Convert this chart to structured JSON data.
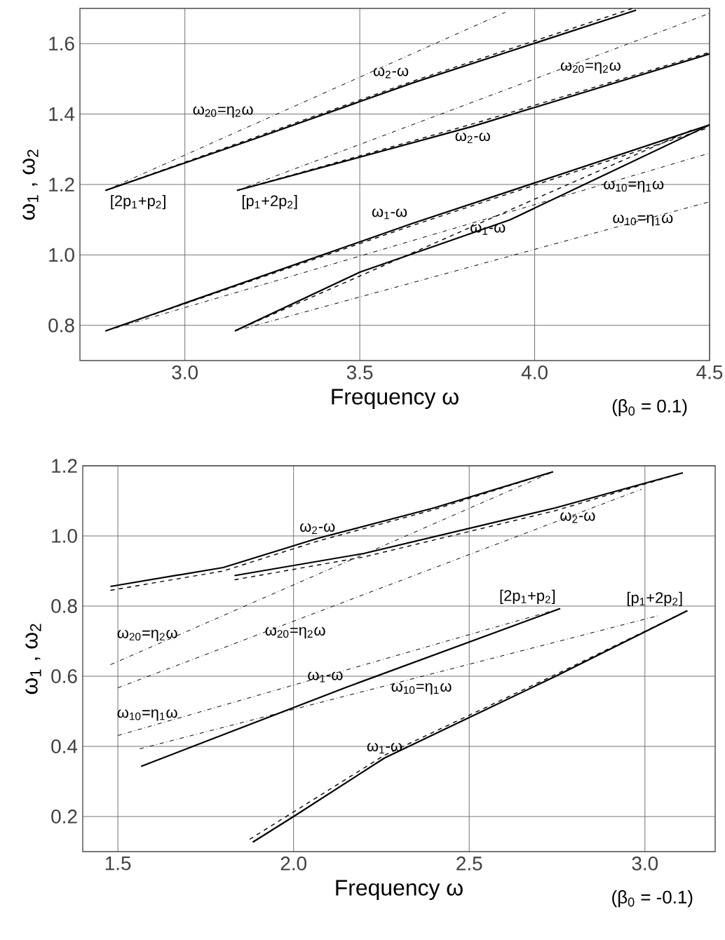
{
  "chart_data": [
    {
      "type": "line",
      "xlabel": "Frequency  ω",
      "ylabel": "ω$_{1}$ ,  ω$_{2}$",
      "subtitle": "(β$_{0}$ = 0.1)",
      "xlim": [
        2.7,
        4.5
      ],
      "ylim": [
        0.7,
        1.7
      ],
      "xticks": [
        {
          "value": 3,
          "label": "3.0"
        },
        3.5,
        {
          "value": 4,
          "label": "4.0"
        },
        4.5
      ],
      "yticks": [
        0.8,
        {
          "value": 1,
          "label": "1.0"
        },
        1.2,
        1.4,
        1.6
      ],
      "grid": true,
      "series": [
        {
          "color": "#000000",
          "line_style": "solid",
          "x": [
            2.773,
            3.2,
            3.653,
            4.29
          ],
          "values": [
            1.183,
            1.33,
            1.489,
            1.695
          ]
        },
        {
          "color": "#000000",
          "line_style": "dashed",
          "x": [
            2.773,
            3.653,
            4.28
          ],
          "values": [
            1.183,
            1.494,
            1.7
          ]
        },
        {
          "color": "#000000",
          "line_style": "dashdot",
          "x": [
            2.773,
            3.916
          ],
          "values": [
            1.183,
            1.689
          ]
        },
        {
          "color": "#000000",
          "line_style": "solid",
          "x": [
            3.149,
            3.823,
            4.5
          ],
          "values": [
            1.183,
            1.365,
            1.571
          ]
        },
        {
          "color": "#000000",
          "line_style": "dashed",
          "x": [
            3.149,
            3.823,
            4.5
          ],
          "values": [
            1.183,
            1.372,
            1.575
          ]
        },
        {
          "color": "#000000",
          "line_style": "dashdot",
          "x": [
            3.149,
            4.5
          ],
          "values": [
            1.183,
            1.686
          ]
        },
        {
          "color": "#000000",
          "line_style": "solid",
          "x": [
            2.773,
            3.649,
            4.5
          ],
          "values": [
            0.784,
            1.089,
            1.369
          ]
        },
        {
          "color": "#000000",
          "line_style": "dashed",
          "x": [
            2.773,
            3.649,
            4.5
          ],
          "values": [
            0.784,
            1.083,
            1.362
          ]
        },
        {
          "color": "#000000",
          "line_style": "dashdot",
          "x": [
            2.773,
            4.5
          ],
          "values": [
            0.784,
            1.289
          ]
        },
        {
          "color": "#000000",
          "line_style": "solid",
          "x": [
            3.143,
            3.5,
            3.93,
            4.5
          ],
          "values": [
            0.784,
            0.951,
            1.1,
            1.369
          ]
        },
        {
          "color": "#000000",
          "line_style": "dashed",
          "x": [
            3.143,
            4.45
          ],
          "values": [
            0.784,
            1.355
          ]
        },
        {
          "color": "#000000",
          "line_style": "dashdot",
          "x": [
            3.143,
            4.5
          ],
          "values": [
            0.784,
            1.151
          ]
        }
      ],
      "annotations": [
        {
          "text": "ω$_{20}$=η$_{2}$ω",
          "x": 3.209,
          "y": 1.377
        },
        {
          "text": "ω$_{2}$-ω",
          "x": 3.653,
          "y": 1.489
        },
        {
          "text": "ω$_{20}$=η$_{2}$ω",
          "x": 4.16,
          "y": 1.56
        },
        {
          "text": "ω$_{2}$-ω",
          "x": 3.823,
          "y": 1.36
        },
        {
          "text": "ω$_{1}$-ω",
          "x": 3.649,
          "y": 1.089
        },
        {
          "text": "ω$_{1}$-ω",
          "x": 3.93,
          "y": 1.1
        },
        {
          "text": "ω$_{10}$=η$_{1}$ω",
          "x": 4.283,
          "y": 1.223
        },
        {
          "text": "ω$_{10}$=η$_{1}$ω",
          "x": 4.409,
          "y": 1.127
        },
        {
          "text": "[2p$_{1}$+p$_{2}$]",
          "x": 2.773,
          "y": 1.183
        },
        {
          "text": "[p$_{1}$+2p$_{2}$]",
          "x": 3.149,
          "y": 1.183
        }
      ]
    },
    {
      "type": "line",
      "xlabel": "Frequency  ω",
      "ylabel": "ω$_{1}$ ,  ω$_{2}$",
      "subtitle": "(β$_{0}$ = -0.1)",
      "xlim": [
        1.4,
        3.2
      ],
      "ylim": [
        0.1,
        1.2
      ],
      "xticks": [
        1.5,
        {
          "value": 2,
          "label": "2.0"
        },
        2.5,
        {
          "value": 3,
          "label": "3.0"
        }
      ],
      "yticks": [
        0.2,
        0.4,
        0.6,
        0.8,
        {
          "value": 1,
          "label": "1.0"
        },
        1.2
      ],
      "grid": true,
      "series": [
        {
          "color": "#000000",
          "line_style": "solid",
          "x": [
            1.479,
            1.8,
            2.068,
            2.4,
            2.739
          ],
          "values": [
            0.856,
            0.91,
            0.993,
            1.08,
            1.183
          ]
        },
        {
          "color": "#000000",
          "line_style": "dashed",
          "x": [
            1.479,
            1.8,
            2.068,
            2.4,
            2.739
          ],
          "values": [
            0.845,
            0.9,
            0.985,
            1.075,
            1.183
          ]
        },
        {
          "color": "#000000",
          "line_style": "dashdot",
          "x": [
            1.479,
            2.739
          ],
          "values": [
            0.633,
            1.183
          ]
        },
        {
          "color": "#000000",
          "line_style": "solid",
          "x": [
            1.832,
            2.2,
            2.745,
            3.108
          ],
          "values": [
            0.887,
            0.95,
            1.08,
            1.18
          ]
        },
        {
          "color": "#000000",
          "line_style": "dashed",
          "x": [
            1.832,
            2.2,
            2.745,
            3.108
          ],
          "values": [
            0.875,
            0.94,
            1.072,
            1.18
          ]
        },
        {
          "color": "#000000",
          "line_style": "dashdot",
          "x": [
            1.5,
            2.99
          ],
          "values": [
            0.567,
            1.133
          ]
        },
        {
          "color": "#000000",
          "line_style": "solid",
          "x": [
            1.566,
            2.154,
            2.759
          ],
          "values": [
            0.343,
            0.57,
            0.793
          ]
        },
        {
          "color": "#000000",
          "line_style": "dashdot",
          "x": [
            1.5,
            2.759
          ],
          "values": [
            0.431,
            0.793
          ]
        },
        {
          "color": "#000000",
          "line_style": "solid",
          "x": [
            1.884,
            2.0,
            2.259,
            2.746,
            3.121
          ],
          "values": [
            0.127,
            0.2,
            0.367,
            0.6,
            0.787
          ]
        },
        {
          "color": "#000000",
          "line_style": "dashed",
          "x": [
            1.875,
            2.259,
            2.746,
            3.121
          ],
          "values": [
            0.135,
            0.375,
            0.605,
            0.787
          ]
        },
        {
          "color": "#000000",
          "line_style": "dashdot",
          "x": [
            1.562,
            3.04
          ],
          "values": [
            0.393,
            0.773
          ]
        }
      ],
      "annotations": [
        {
          "text": "ω$_{2}$-ω",
          "x": 2.068,
          "y": 0.993
        },
        {
          "text": "ω$_{2}$-ω",
          "x": 2.745,
          "y": 1.08
        },
        {
          "text": "ω$_{20}$=η$_{2}$ω",
          "x": 1.584,
          "y": 0.687
        },
        {
          "text": "ω$_{20}$=η$_{2}$ω",
          "x": 2.005,
          "y": 0.753
        },
        {
          "text": "ω$_{1}$-ω",
          "x": 2.154,
          "y": 0.57
        },
        {
          "text": "ω$_{10}$=η$_{1}$ω",
          "x": 1.584,
          "y": 0.46
        },
        {
          "text": "ω$_{10}$=η$_{1}$ω",
          "x": 2.364,
          "y": 0.593
        },
        {
          "text": "ω$_{1}$-ω",
          "x": 2.259,
          "y": 0.367
        },
        {
          "text": "[2p$_{1}$+p$_{2}$]",
          "x": 2.759,
          "y": 0.793
        },
        {
          "text": "[p$_{1}$+2p$_{2}$]",
          "x": 3.121,
          "y": 0.787
        }
      ]
    }
  ]
}
